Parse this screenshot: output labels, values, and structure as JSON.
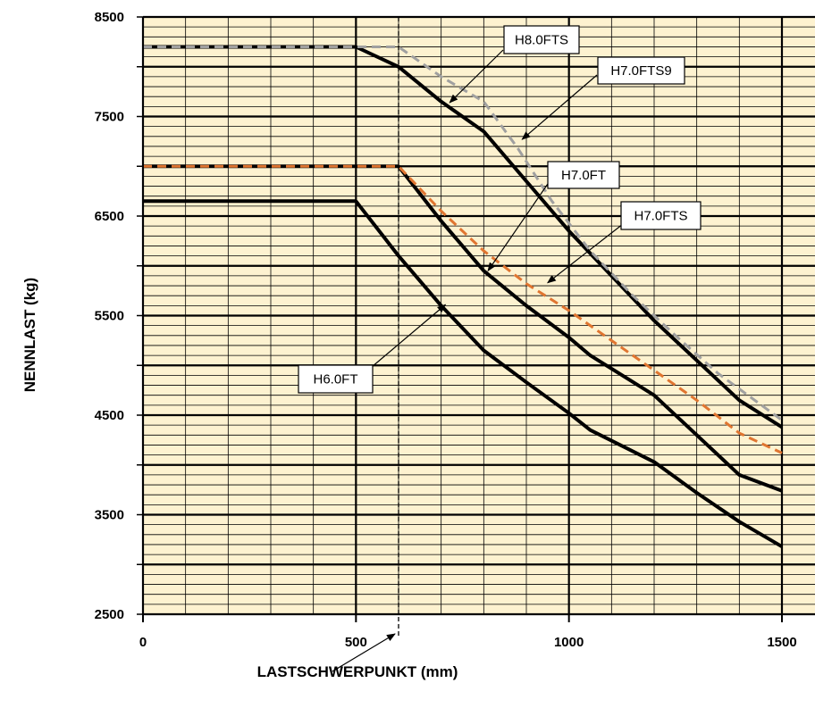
{
  "chart_data": {
    "type": "line",
    "xlabel": "LASTSCHWERPUNKT (mm)",
    "ylabel": "NENNLAST (kg)",
    "xlim": [
      0,
      1500
    ],
    "ylim": [
      2500,
      8500
    ],
    "x_ticks": [
      "0",
      "500",
      "1000",
      "1500"
    ],
    "y_ticks": [
      "2500",
      "3500",
      "4500",
      "5500",
      "6500",
      "7500",
      "8500"
    ],
    "grid": true,
    "background_color": "#fdf2d0",
    "reference_line_x": 600,
    "series": [
      {
        "name": "H8.0FTS",
        "style": "solid",
        "color": "#000000",
        "points": [
          [
            0,
            8200
          ],
          [
            500,
            8200
          ],
          [
            600,
            8000
          ],
          [
            700,
            7650
          ],
          [
            800,
            7350
          ],
          [
            900,
            6850
          ],
          [
            1000,
            6350
          ],
          [
            1100,
            5900
          ],
          [
            1200,
            5450
          ],
          [
            1300,
            5050
          ],
          [
            1400,
            4650
          ],
          [
            1500,
            4380
          ]
        ]
      },
      {
        "name": "H7.0FTS9",
        "style": "dashed",
        "color": "#a0a0a0",
        "points": [
          [
            0,
            8200
          ],
          [
            600,
            8200
          ],
          [
            700,
            7900
          ],
          [
            800,
            7650
          ],
          [
            880,
            7180
          ],
          [
            960,
            6650
          ],
          [
            1050,
            6150
          ],
          [
            1150,
            5700
          ],
          [
            1250,
            5300
          ],
          [
            1350,
            4920
          ],
          [
            1500,
            4450
          ]
        ]
      },
      {
        "name": "H7.0FT",
        "style": "solid",
        "color": "#000000",
        "points": [
          [
            0,
            7000
          ],
          [
            600,
            7000
          ],
          [
            700,
            6450
          ],
          [
            800,
            5950
          ],
          [
            900,
            5600
          ],
          [
            1000,
            5280
          ],
          [
            1050,
            5100
          ],
          [
            1200,
            4700
          ],
          [
            1300,
            4300
          ],
          [
            1400,
            3900
          ],
          [
            1500,
            3740
          ]
        ]
      },
      {
        "name": "H7.0FTS",
        "style": "dashed",
        "color": "#e07530",
        "points": [
          [
            0,
            7000
          ],
          [
            600,
            7000
          ],
          [
            700,
            6550
          ],
          [
            800,
            6150
          ],
          [
            900,
            5820
          ],
          [
            1000,
            5550
          ],
          [
            1100,
            5250
          ],
          [
            1200,
            4950
          ],
          [
            1300,
            4650
          ],
          [
            1400,
            4320
          ],
          [
            1500,
            4120
          ]
        ]
      },
      {
        "name": "H6.0FT",
        "style": "solid",
        "color": "#000000",
        "points": [
          [
            0,
            6650
          ],
          [
            500,
            6650
          ],
          [
            600,
            6100
          ],
          [
            700,
            5600
          ],
          [
            800,
            5150
          ],
          [
            900,
            4830
          ],
          [
            1000,
            4520
          ],
          [
            1050,
            4350
          ],
          [
            1200,
            4030
          ],
          [
            1300,
            3720
          ],
          [
            1400,
            3430
          ],
          [
            1500,
            3180
          ]
        ]
      }
    ],
    "callouts": [
      {
        "label": "H8.0FTS",
        "target": [
          720,
          7640
        ]
      },
      {
        "label": "H7.0FTS9",
        "target": [
          890,
          7270
        ]
      },
      {
        "label": "H7.0FT",
        "target": [
          810,
          5950
        ]
      },
      {
        "label": "H7.0FTS",
        "target": [
          950,
          5830
        ]
      },
      {
        "label": "H6.0FT",
        "target": [
          710,
          5610
        ]
      },
      {
        "label": "",
        "target": [
          600,
          2250
        ]
      }
    ]
  }
}
